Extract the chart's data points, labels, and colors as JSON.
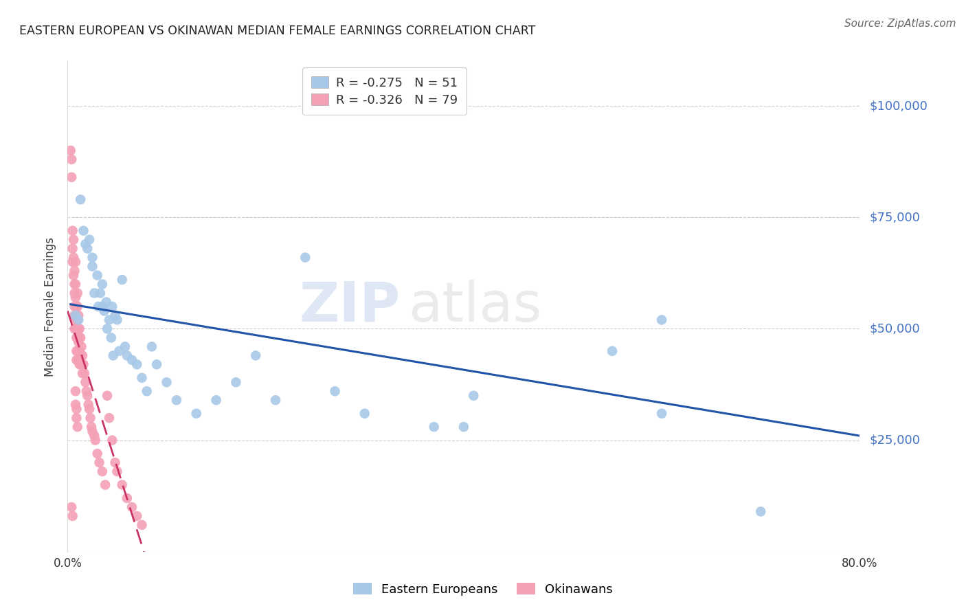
{
  "title": "EASTERN EUROPEAN VS OKINAWAN MEDIAN FEMALE EARNINGS CORRELATION CHART",
  "source": "Source: ZipAtlas.com",
  "ylabel": "Median Female Earnings",
  "watermark_zip": "ZIP",
  "watermark_atlas": "atlas",
  "xlim": [
    0.0,
    0.8
  ],
  "ylim": [
    0,
    110000
  ],
  "yticks": [
    0,
    25000,
    50000,
    75000,
    100000
  ],
  "xticks": [
    0.0,
    0.8
  ],
  "xtick_labels": [
    "0.0%",
    "80.0%"
  ],
  "legend_r1": "-0.275",
  "legend_n1": "51",
  "legend_r2": "-0.326",
  "legend_n2": "79",
  "blue_color": "#a8c8e8",
  "pink_color": "#f4a0b5",
  "trend_blue": "#2255aa",
  "trend_pink": "#cc3366",
  "title_color": "#222222",
  "right_label_color": "#4472c4",
  "source_color": "#666666",
  "background_color": "#ffffff",
  "grid_color": "#cccccc",
  "blue_trend_x0": 0.003,
  "blue_trend_y0": 55500,
  "blue_trend_x1": 0.8,
  "blue_trend_y1": 26000,
  "pink_trend_x0": 0.0,
  "pink_trend_y0": 54000,
  "pink_trend_x1": 0.077,
  "pink_trend_y1": 0,
  "eastern_europeans_x": [
    0.008,
    0.011,
    0.013,
    0.016,
    0.018,
    0.02,
    0.022,
    0.025,
    0.025,
    0.027,
    0.03,
    0.031,
    0.033,
    0.035,
    0.035,
    0.037,
    0.039,
    0.04,
    0.042,
    0.044,
    0.045,
    0.046,
    0.048,
    0.05,
    0.052,
    0.055,
    0.058,
    0.06,
    0.065,
    0.07,
    0.075,
    0.08,
    0.085,
    0.09,
    0.1,
    0.11,
    0.13,
    0.15,
    0.17,
    0.19,
    0.21,
    0.24,
    0.27,
    0.3,
    0.37,
    0.41,
    0.6,
    0.6,
    0.7,
    0.55,
    0.4
  ],
  "eastern_europeans_y": [
    53000,
    52000,
    79000,
    72000,
    69000,
    68000,
    70000,
    66000,
    64000,
    58000,
    62000,
    55000,
    58000,
    60000,
    55000,
    54000,
    56000,
    50000,
    52000,
    48000,
    55000,
    44000,
    53000,
    52000,
    45000,
    61000,
    46000,
    44000,
    43000,
    42000,
    39000,
    36000,
    46000,
    42000,
    38000,
    34000,
    31000,
    34000,
    38000,
    44000,
    34000,
    66000,
    36000,
    31000,
    28000,
    35000,
    31000,
    52000,
    9000,
    45000,
    28000
  ],
  "okinawans_x": [
    0.003,
    0.004,
    0.004,
    0.005,
    0.005,
    0.005,
    0.006,
    0.006,
    0.006,
    0.007,
    0.007,
    0.007,
    0.007,
    0.007,
    0.007,
    0.008,
    0.008,
    0.008,
    0.008,
    0.008,
    0.009,
    0.009,
    0.009,
    0.009,
    0.009,
    0.009,
    0.01,
    0.01,
    0.01,
    0.01,
    0.01,
    0.01,
    0.011,
    0.011,
    0.011,
    0.011,
    0.012,
    0.012,
    0.012,
    0.012,
    0.013,
    0.013,
    0.014,
    0.014,
    0.015,
    0.015,
    0.016,
    0.017,
    0.018,
    0.019,
    0.02,
    0.021,
    0.022,
    0.023,
    0.024,
    0.025,
    0.027,
    0.028,
    0.03,
    0.032,
    0.035,
    0.038,
    0.04,
    0.042,
    0.045,
    0.048,
    0.05,
    0.055,
    0.06,
    0.065,
    0.07,
    0.075,
    0.008,
    0.009,
    0.01,
    0.008,
    0.009,
    0.004,
    0.005
  ],
  "okinawans_y": [
    90000,
    88000,
    84000,
    72000,
    68000,
    65000,
    70000,
    66000,
    62000,
    63000,
    60000,
    58000,
    55000,
    53000,
    50000,
    65000,
    60000,
    57000,
    53000,
    50000,
    55000,
    52000,
    50000,
    48000,
    45000,
    43000,
    58000,
    55000,
    52000,
    50000,
    48000,
    45000,
    53000,
    50000,
    47000,
    43000,
    50000,
    48000,
    45000,
    42000,
    48000,
    44000,
    46000,
    42000,
    44000,
    40000,
    42000,
    40000,
    38000,
    36000,
    35000,
    33000,
    32000,
    30000,
    28000,
    27000,
    26000,
    25000,
    22000,
    20000,
    18000,
    15000,
    35000,
    30000,
    25000,
    20000,
    18000,
    15000,
    12000,
    10000,
    8000,
    6000,
    33000,
    30000,
    28000,
    36000,
    32000,
    10000,
    8000
  ]
}
